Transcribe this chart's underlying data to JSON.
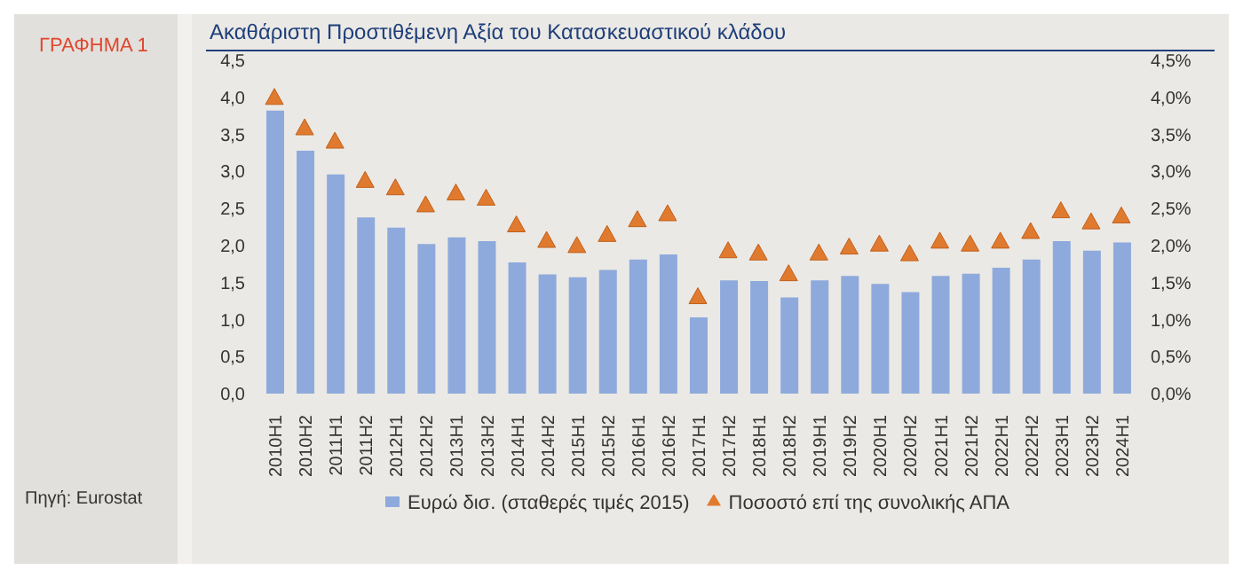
{
  "chart_data": {
    "type": "bar",
    "title": "Ακαθάριστη Προστιθέμενη Αξία του Κατασκευαστικού κλάδου",
    "annotations": [
      "ΓΡΑΦΗΜΑ 1",
      "Πηγή: Eurostat"
    ],
    "categories": [
      "2010H1",
      "2010H2",
      "2011H1",
      "2011H2",
      "2012H1",
      "2012H2",
      "2013H1",
      "2013H2",
      "2014H1",
      "2014H2",
      "2015H1",
      "2015H2",
      "2016H1",
      "2016H2",
      "2017H1",
      "2017H2",
      "2018H1",
      "2018H2",
      "2019H1",
      "2019H2",
      "2020H1",
      "2020H2",
      "2021H1",
      "2021H2",
      "2022H1",
      "2022H2",
      "2023H1",
      "2023H2",
      "2024H1"
    ],
    "series": [
      {
        "name": "Ευρώ δισ. (σταθερές τιμές 2015)",
        "color": "#8eaadc",
        "values": [
          3.82,
          3.28,
          2.96,
          2.38,
          2.24,
          2.02,
          2.11,
          2.06,
          1.77,
          1.61,
          1.57,
          1.67,
          1.81,
          1.88,
          1.03,
          1.53,
          1.52,
          1.3,
          1.53,
          1.59,
          1.48,
          1.37,
          1.59,
          1.62,
          1.7,
          1.81,
          2.06,
          1.93,
          2.04
        ]
      },
      {
        "name": "Ποσοστό επί της συνολικής ΑΠΑ",
        "type": "scatter",
        "axis": "y2",
        "marker": "triangle",
        "color": "#e07a2e",
        "values": [
          4.0,
          3.59,
          3.41,
          2.88,
          2.78,
          2.55,
          2.71,
          2.64,
          2.28,
          2.07,
          2.0,
          2.15,
          2.35,
          2.43,
          1.31,
          1.93,
          1.9,
          1.62,
          1.9,
          1.98,
          2.02,
          1.89,
          2.06,
          2.02,
          2.06,
          2.19,
          2.47,
          2.32,
          2.4
        ]
      }
    ],
    "ylim": [
      0,
      4.5
    ],
    "yticks": [
      {
        "value": 0,
        "label": "0,0"
      },
      {
        "value": 0.5,
        "label": "0,5"
      },
      {
        "value": 1,
        "label": "1,0"
      },
      {
        "value": 1.5,
        "label": "1,5"
      },
      {
        "value": 2,
        "label": "2,0"
      },
      {
        "value": 2.5,
        "label": "2,5"
      },
      {
        "value": 3,
        "label": "3,0"
      },
      {
        "value": 3.5,
        "label": "3,5"
      },
      {
        "value": 4,
        "label": "4,0"
      },
      {
        "value": 4.5,
        "label": "4,5"
      }
    ],
    "y2lim": [
      0,
      4.5
    ],
    "y2ticks": [
      {
        "value": 0,
        "label": "0,0%"
      },
      {
        "value": 0.5,
        "label": "0,5%"
      },
      {
        "value": 1,
        "label": "1,0%"
      },
      {
        "value": 1.5,
        "label": "1,5%"
      },
      {
        "value": 2,
        "label": "2,0%"
      },
      {
        "value": 2.5,
        "label": "2,5%"
      },
      {
        "value": 3,
        "label": "3,0%"
      },
      {
        "value": 3.5,
        "label": "3,5%"
      },
      {
        "value": 4,
        "label": "4,0%"
      },
      {
        "value": 4.5,
        "label": "4,5%"
      }
    ],
    "grid": false,
    "legend": "bottom"
  }
}
